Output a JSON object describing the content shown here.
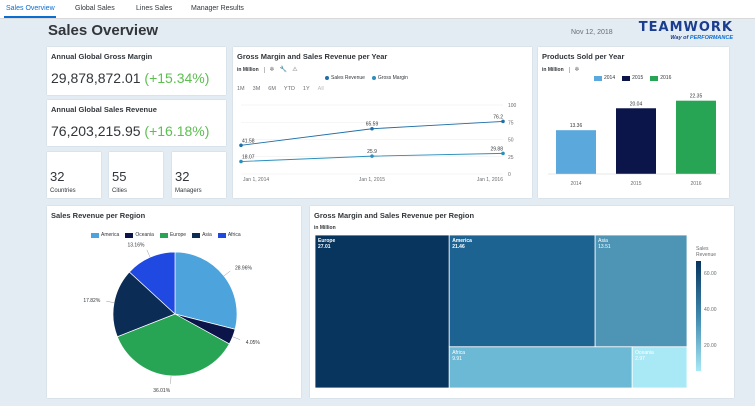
{
  "tabs": [
    {
      "label": "Sales Overview",
      "active": true
    },
    {
      "label": "Global Sales",
      "active": false
    },
    {
      "label": "Lines Sales",
      "active": false
    },
    {
      "label": "Manager Results",
      "active": false
    }
  ],
  "page_title": "Sales Overview",
  "date": "Nov 12, 2018",
  "logo": {
    "name": "TEAMWORK",
    "tag_prefix": "Way",
    "tag_mid": "of",
    "tag_hl": "PERFORMANCE"
  },
  "kpis": {
    "gross_margin": {
      "title": "Annual Global Gross Margin",
      "value": "29,878,872.01",
      "delta": "(+15.34%)"
    },
    "sales_revenue": {
      "title": "Annual Global Sales Revenue",
      "value": "76,203,215.95",
      "delta": "(+16.18%)"
    }
  },
  "tiles": [
    {
      "value": "32",
      "label": "Countries"
    },
    {
      "value": "55",
      "label": "Cities"
    },
    {
      "value": "32",
      "label": "Managers"
    }
  ],
  "line_card": {
    "title": "Gross Margin and Sales Revenue per Year",
    "unit": "in Million",
    "periods": [
      "1M",
      "3M",
      "6M",
      "YTD",
      "1Y",
      "All"
    ]
  },
  "bar_card": {
    "title": "Products Sold per Year",
    "unit": "in Million"
  },
  "pie_card": {
    "title": "Sales Revenue per Region"
  },
  "tree_card": {
    "title": "Gross Margin and Sales Revenue per Region",
    "unit": "in Million",
    "legend_title_1": "Sales",
    "legend_title_2": "Revenue"
  },
  "icons": {
    "filter": "snowflake-icon",
    "edit": "wrench-icon",
    "warn": "warning-icon"
  },
  "chart_data": [
    {
      "type": "line",
      "title": "Gross Margin and Sales Revenue per Year",
      "x": [
        "Jan 1, 2014",
        "Jan 1, 2015",
        "Jan 1, 2016"
      ],
      "series": [
        {
          "name": "Sales Revenue",
          "values": [
            41.58,
            65.59,
            76.2
          ],
          "labels": [
            "41.58",
            "65.59",
            "76.2"
          ],
          "color": "#1f6fa8"
        },
        {
          "name": "Gross Margin",
          "values": [
            18.07,
            25.9,
            29.88
          ],
          "labels": [
            "18.07",
            "25.9",
            "29.88"
          ],
          "color": "#2a8fbd"
        }
      ],
      "ylim": [
        0,
        100
      ],
      "yticks": [
        "0",
        "25",
        "50",
        "75",
        "100"
      ],
      "ylabel": "",
      "xlabel": "",
      "legend": "top"
    },
    {
      "type": "bar",
      "title": "Products Sold per Year",
      "categories": [
        "2014",
        "2015",
        "2016"
      ],
      "values": [
        13.36,
        20.04,
        22.35
      ],
      "labels": [
        "13.36",
        "20.04",
        "22.35"
      ],
      "colors": [
        "#5ba9dc",
        "#0c1549",
        "#27a555"
      ],
      "ylim": [
        0,
        25
      ],
      "legend": "top"
    },
    {
      "type": "pie",
      "title": "Sales Revenue per Region",
      "categories": [
        "America",
        "Oceania",
        "Europe",
        "Asia",
        "Africa"
      ],
      "values": [
        28.96,
        4.05,
        36.01,
        17.82,
        13.16
      ],
      "labels": [
        "28.96%",
        "4.05%",
        "36.01%",
        "17.82%",
        "13.16%"
      ],
      "colors": [
        "#4da3dc",
        "#0c1549",
        "#27a555",
        "#0b2d55",
        "#1f49e0"
      ],
      "legend": "top"
    },
    {
      "type": "heatmap",
      "title": "Gross Margin and Sales Revenue per Region",
      "categories": [
        "Europe",
        "America",
        "Asia",
        "Africa",
        "Oceania"
      ],
      "values": [
        27.01,
        21.46,
        13.51,
        9.91,
        2.97
      ],
      "labels": [
        "27.01",
        "21.46",
        "13.51",
        "9.91",
        "2.97"
      ],
      "colors": [
        "#08355e",
        "#1d6392",
        "#4e95b5",
        "#6cb9d6",
        "#a9e9f6"
      ],
      "scale_ticks": [
        "60.00",
        "40.00",
        "20.00"
      ],
      "legend": "right"
    }
  ]
}
